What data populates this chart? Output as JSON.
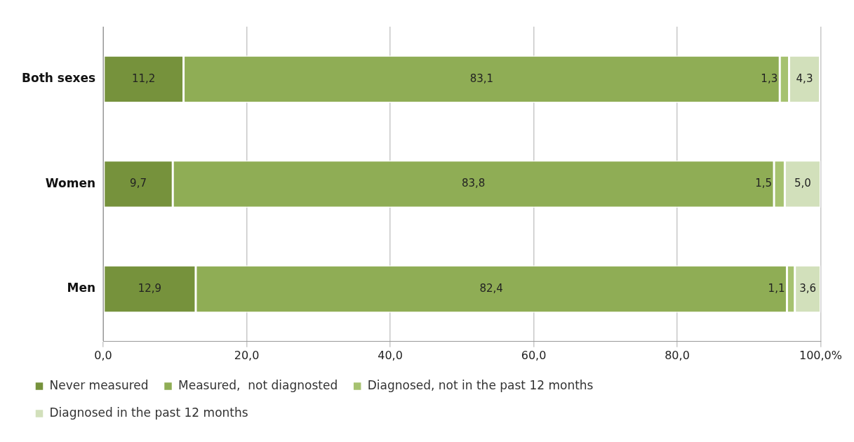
{
  "chart_data": {
    "type": "bar",
    "orientation": "horizontal",
    "stacked": true,
    "categories": [
      "Both sexes",
      "Women",
      "Men"
    ],
    "series": [
      {
        "name": "Never measured",
        "color": "#76923c",
        "values": [
          11.2,
          9.7,
          12.9
        ],
        "value_labels": [
          "11,2",
          "9,7",
          "12,9"
        ]
      },
      {
        "name": "Measured,  not diagnosted",
        "color": "#8fad55",
        "values": [
          83.1,
          83.8,
          82.4
        ],
        "value_labels": [
          "83,1",
          "83,8",
          "82,4"
        ]
      },
      {
        "name": "Diagnosed, not in the past 12 months",
        "color": "#a6c270",
        "values": [
          1.3,
          1.5,
          1.1
        ],
        "value_labels": [
          "1,3",
          "1,5",
          "1,1"
        ]
      },
      {
        "name": "Diagnosed in the past 12 months",
        "color": "#d2e0bb",
        "values": [
          4.3,
          5.0,
          3.6
        ],
        "value_labels": [
          "4,3",
          "5,0",
          "3,6"
        ]
      }
    ],
    "xlim": [
      0,
      100
    ],
    "xticks": [
      {
        "value": 0,
        "label": "0,0"
      },
      {
        "value": 20,
        "label": "20,0"
      },
      {
        "value": 40,
        "label": "40,0"
      },
      {
        "value": 60,
        "label": "60,0"
      },
      {
        "value": 80,
        "label": "80,0"
      },
      {
        "value": 100,
        "label": "100,0%"
      }
    ],
    "grid": "x",
    "legend": "bottom"
  }
}
